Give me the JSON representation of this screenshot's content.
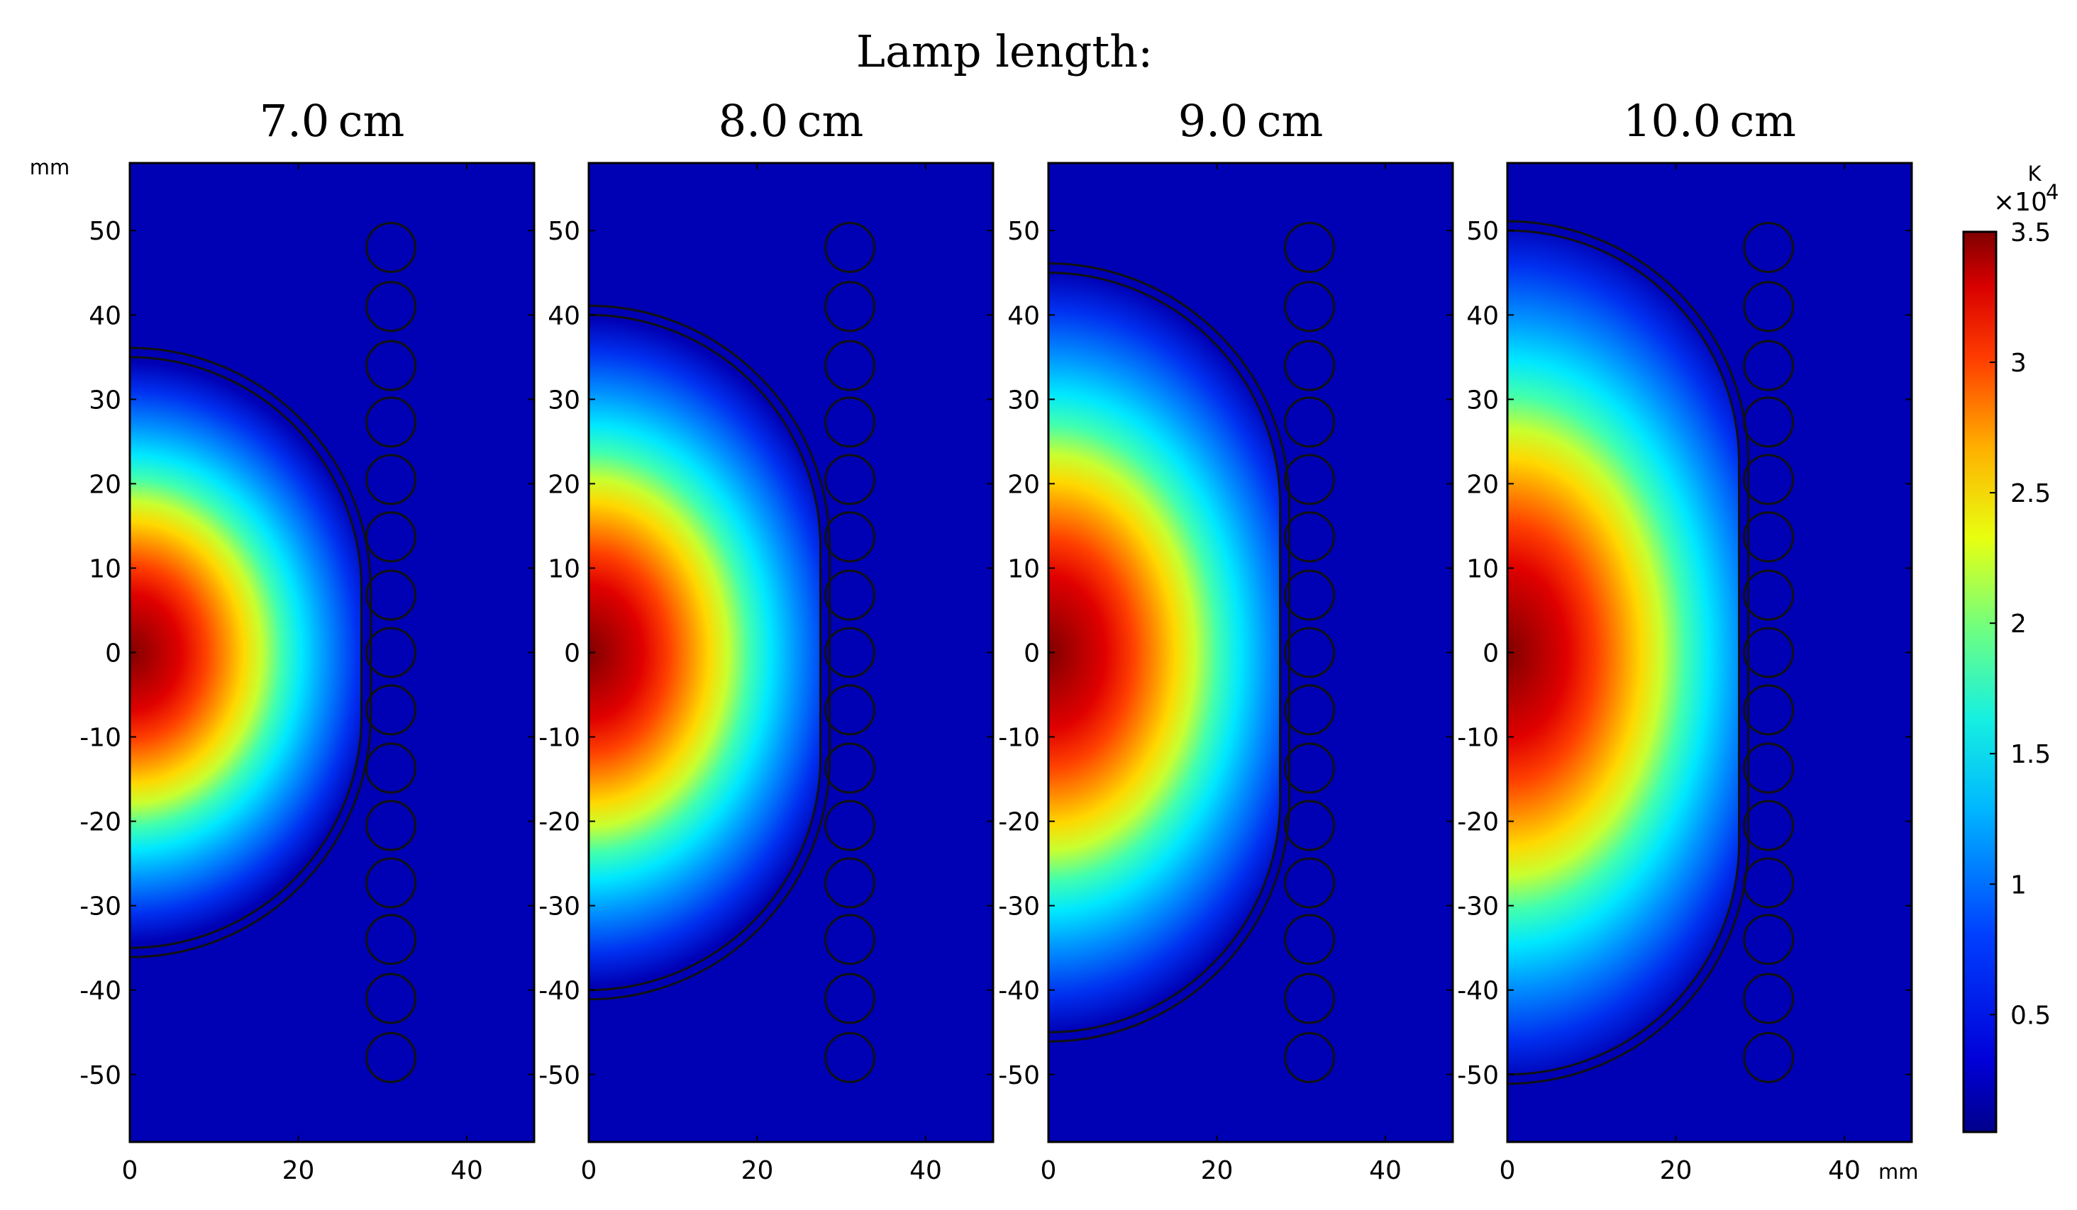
{
  "chart_data": {
    "type": "heatmap",
    "title": "Lamp length:",
    "axis_unit": "mm",
    "xlim": [
      0,
      48
    ],
    "ylim": [
      -58,
      58
    ],
    "xticks": [
      0,
      20,
      40
    ],
    "yticks": [
      50,
      40,
      30,
      20,
      10,
      0,
      -10,
      -20,
      -30,
      -40,
      -50
    ],
    "panels": [
      {
        "title": "7.0 cm",
        "lamp_length_cm": 7.0
      },
      {
        "title": "8.0 cm",
        "lamp_length_cm": 8.0
      },
      {
        "title": "9.0 cm",
        "lamp_length_cm": 9.0
      },
      {
        "title": "10.0 cm",
        "lamp_length_cm": 10.0
      }
    ],
    "colorbar": {
      "label": "K",
      "multiplier": "×10",
      "exponent": "4",
      "range": [
        0.05,
        3.5
      ],
      "ticks": [
        "3.5",
        "3",
        "2.5",
        "2",
        "1.5",
        "1",
        "0.5"
      ],
      "colormap": "jet"
    },
    "tube_ring": {
      "x_mm": 31,
      "y_mm": [
        48,
        41,
        34,
        27.3,
        20.5,
        13.7,
        6.8,
        0,
        -6.8,
        -13.7,
        -20.5,
        -27.3,
        -34,
        -41,
        -48
      ]
    }
  }
}
